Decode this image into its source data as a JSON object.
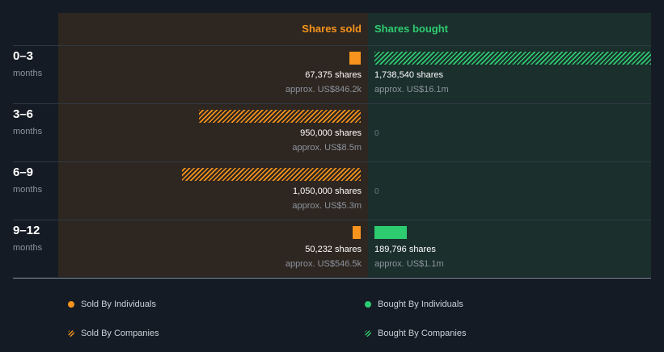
{
  "colors": {
    "sold": "#f7941d",
    "bought": "#2ecc71",
    "sold_panel": "#2e2620",
    "bought_panel": "#1b302c"
  },
  "chart_data": {
    "type": "bar",
    "headers": {
      "sold": "Shares sold",
      "bought": "Shares bought"
    },
    "x_max_shares": 1738540,
    "rows": [
      {
        "label": "0–3",
        "sublabel": "months",
        "sold": {
          "value": 67375,
          "by": "individuals",
          "shares_text": "67,375 shares",
          "approx_text": "approx. US$846.2k"
        },
        "bought": {
          "value": 1738540,
          "by": "companies",
          "shares_text": "1,738,540 shares",
          "approx_text": "approx. US$16.1m"
        }
      },
      {
        "label": "3–6",
        "sublabel": "months",
        "sold": {
          "value": 950000,
          "by": "companies",
          "shares_text": "950,000 shares",
          "approx_text": "approx. US$8.5m"
        },
        "bought": {
          "value": 0,
          "by": "none",
          "zero_text": "0"
        }
      },
      {
        "label": "6–9",
        "sublabel": "months",
        "sold": {
          "value": 1050000,
          "by": "companies",
          "shares_text": "1,050,000 shares",
          "approx_text": "approx. US$5.3m"
        },
        "bought": {
          "value": 0,
          "by": "none",
          "zero_text": "0"
        }
      },
      {
        "label": "9–12",
        "sublabel": "months",
        "sold": {
          "value": 50232,
          "by": "individuals",
          "shares_text": "50,232 shares",
          "approx_text": "approx. US$546.5k"
        },
        "bought": {
          "value": 189796,
          "by": "individuals",
          "shares_text": "189,796 shares",
          "approx_text": "approx. US$1.1m"
        }
      }
    ],
    "legend": [
      {
        "label": "Sold By Individuals",
        "kind": "sold-individuals"
      },
      {
        "label": "Bought By Individuals",
        "kind": "bought-individuals"
      },
      {
        "label": "Sold By Companies",
        "kind": "sold-companies"
      },
      {
        "label": "Bought By Companies",
        "kind": "bought-companies"
      }
    ]
  }
}
